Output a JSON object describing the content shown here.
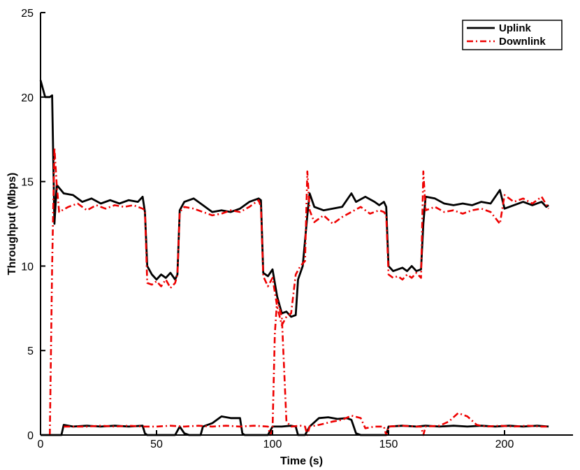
{
  "chart_data": {
    "type": "line",
    "title": "",
    "xlabel": "Time (s)",
    "ylabel": "Throughput (Mbps)",
    "xlim": [
      0,
      225
    ],
    "ylim": [
      0,
      25
    ],
    "xticks": [
      0,
      50,
      100,
      150,
      200
    ],
    "yticks": [
      0,
      5,
      10,
      15,
      20,
      25
    ],
    "grid": false,
    "legend_position": "top-right",
    "series": [
      {
        "name": "Uplink",
        "color": "#000000",
        "line_style": "solid",
        "traces": [
          [
            [
              0,
              21
            ],
            [
              2,
              20
            ],
            [
              4,
              20
            ],
            [
              5,
              20.1
            ],
            [
              6,
              12.5
            ],
            [
              7,
              14.8
            ],
            [
              10,
              14.3
            ],
            [
              14,
              14.2
            ],
            [
              18,
              13.8
            ],
            [
              22,
              14
            ],
            [
              26,
              13.7
            ],
            [
              30,
              13.9
            ],
            [
              34,
              13.7
            ],
            [
              38,
              13.9
            ],
            [
              42,
              13.8
            ],
            [
              44,
              14.1
            ],
            [
              45,
              13.2
            ],
            [
              46,
              10
            ],
            [
              48,
              9.5
            ],
            [
              50,
              9.2
            ],
            [
              52,
              9.5
            ],
            [
              54,
              9.3
            ],
            [
              56,
              9.6
            ],
            [
              58,
              9.2
            ],
            [
              59,
              9.5
            ],
            [
              60,
              13.3
            ],
            [
              62,
              13.8
            ],
            [
              66,
              14
            ],
            [
              70,
              13.6
            ],
            [
              74,
              13.2
            ],
            [
              78,
              13.3
            ],
            [
              82,
              13.2
            ],
            [
              86,
              13.4
            ],
            [
              90,
              13.8
            ],
            [
              94,
              14
            ],
            [
              95,
              13.9
            ],
            [
              96,
              9.6
            ],
            [
              98,
              9.4
            ],
            [
              100,
              9.8
            ],
            [
              102,
              8.2
            ],
            [
              104,
              7.2
            ],
            [
              106,
              7.3
            ],
            [
              108,
              7
            ],
            [
              110,
              7.1
            ],
            [
              111,
              9.2
            ],
            [
              113,
              10
            ],
            [
              115,
              13
            ],
            [
              116,
              14.3
            ],
            [
              118,
              13.5
            ],
            [
              122,
              13.3
            ],
            [
              126,
              13.4
            ],
            [
              130,
              13.5
            ],
            [
              134,
              14.3
            ],
            [
              136,
              13.8
            ],
            [
              140,
              14.1
            ],
            [
              144,
              13.8
            ],
            [
              146,
              13.6
            ],
            [
              148,
              13.8
            ],
            [
              149,
              13.5
            ],
            [
              150,
              10
            ],
            [
              152,
              9.7
            ],
            [
              154,
              9.8
            ],
            [
              156,
              9.9
            ],
            [
              158,
              9.7
            ],
            [
              160,
              10
            ],
            [
              162,
              9.7
            ],
            [
              164,
              9.8
            ],
            [
              165,
              12.5
            ],
            [
              166,
              14.1
            ],
            [
              170,
              14
            ],
            [
              174,
              13.7
            ],
            [
              178,
              13.6
            ],
            [
              182,
              13.7
            ],
            [
              186,
              13.6
            ],
            [
              190,
              13.8
            ],
            [
              194,
              13.7
            ],
            [
              198,
              14.5
            ],
            [
              200,
              13.4
            ],
            [
              204,
              13.6
            ],
            [
              208,
              13.8
            ],
            [
              212,
              13.6
            ],
            [
              216,
              13.8
            ],
            [
              218,
              13.5
            ],
            [
              219,
              13.6
            ]
          ],
          [
            [
              0,
              0
            ],
            [
              9,
              0
            ],
            [
              10,
              0.6
            ],
            [
              14,
              0.5
            ],
            [
              20,
              0.55
            ],
            [
              26,
              0.5
            ],
            [
              32,
              0.55
            ],
            [
              38,
              0.5
            ],
            [
              44,
              0.55
            ],
            [
              45,
              0.1
            ],
            [
              46,
              0
            ],
            [
              58,
              0
            ],
            [
              60,
              0.5
            ],
            [
              62,
              0.1
            ],
            [
              64,
              0
            ],
            [
              69,
              0
            ],
            [
              70,
              0.5
            ],
            [
              74,
              0.7
            ],
            [
              78,
              1.1
            ],
            [
              82,
              1
            ],
            [
              86,
              1
            ],
            [
              87,
              0.1
            ],
            [
              88,
              0
            ],
            [
              98,
              0
            ],
            [
              100,
              0.5
            ],
            [
              104,
              0.5
            ],
            [
              108,
              0.55
            ],
            [
              110,
              0.5
            ],
            [
              111,
              0
            ],
            [
              114,
              0
            ],
            [
              116,
              0.5
            ],
            [
              120,
              1
            ],
            [
              124,
              1.05
            ],
            [
              128,
              0.95
            ],
            [
              132,
              1
            ],
            [
              134,
              0.9
            ],
            [
              136,
              0.1
            ],
            [
              138,
              0
            ],
            [
              149,
              0
            ],
            [
              150,
              0.5
            ],
            [
              156,
              0.55
            ],
            [
              162,
              0.5
            ],
            [
              166,
              0.55
            ],
            [
              172,
              0.5
            ],
            [
              178,
              0.55
            ],
            [
              184,
              0.5
            ],
            [
              190,
              0.55
            ],
            [
              196,
              0.5
            ],
            [
              202,
              0.55
            ],
            [
              208,
              0.5
            ],
            [
              214,
              0.55
            ],
            [
              219,
              0.5
            ]
          ]
        ]
      },
      {
        "name": "Downlink",
        "color": "#ee0000",
        "line_style": "dash-dot",
        "traces": [
          [
            [
              4,
              0
            ],
            [
              5,
              10
            ],
            [
              6,
              17
            ],
            [
              7,
              14.8
            ],
            [
              8,
              13.2
            ],
            [
              12,
              13.5
            ],
            [
              16,
              13.7
            ],
            [
              20,
              13.3
            ],
            [
              24,
              13.6
            ],
            [
              28,
              13.4
            ],
            [
              32,
              13.6
            ],
            [
              36,
              13.5
            ],
            [
              40,
              13.6
            ],
            [
              44,
              13.4
            ],
            [
              45,
              13.3
            ],
            [
              46,
              9
            ],
            [
              48,
              8.9
            ],
            [
              50,
              9.1
            ],
            [
              52,
              8.8
            ],
            [
              54,
              9.2
            ],
            [
              56,
              8.7
            ],
            [
              58,
              9
            ],
            [
              59,
              9.5
            ],
            [
              60,
              13.2
            ],
            [
              62,
              13.5
            ],
            [
              66,
              13.4
            ],
            [
              70,
              13.2
            ],
            [
              74,
              13
            ],
            [
              78,
              13.1
            ],
            [
              82,
              13.3
            ],
            [
              86,
              13.2
            ],
            [
              90,
              13.5
            ],
            [
              94,
              13.9
            ],
            [
              95,
              13.5
            ],
            [
              96,
              9.4
            ],
            [
              98,
              8.8
            ],
            [
              100,
              9.3
            ],
            [
              102,
              7.6
            ],
            [
              104,
              6.5
            ],
            [
              106,
              7
            ],
            [
              108,
              7.2
            ],
            [
              110,
              9.5
            ],
            [
              112,
              10
            ],
            [
              114,
              10.3
            ],
            [
              115,
              15.6
            ],
            [
              116,
              13.3
            ],
            [
              118,
              12.6
            ],
            [
              122,
              13
            ],
            [
              126,
              12.5
            ],
            [
              130,
              12.9
            ],
            [
              134,
              13.2
            ],
            [
              138,
              13.5
            ],
            [
              142,
              13.1
            ],
            [
              146,
              13.3
            ],
            [
              148,
              13.2
            ],
            [
              149,
              13
            ],
            [
              150,
              9.5
            ],
            [
              152,
              9.3
            ],
            [
              154,
              9.4
            ],
            [
              156,
              9.2
            ],
            [
              158,
              9.5
            ],
            [
              160,
              9.3
            ],
            [
              162,
              9.6
            ],
            [
              164,
              9.3
            ],
            [
              165,
              15.6
            ],
            [
              166,
              13.3
            ],
            [
              170,
              13.5
            ],
            [
              174,
              13.2
            ],
            [
              178,
              13.3
            ],
            [
              182,
              13.1
            ],
            [
              186,
              13.3
            ],
            [
              190,
              13.4
            ],
            [
              194,
              13.2
            ],
            [
              198,
              12.5
            ],
            [
              200,
              14.2
            ],
            [
              204,
              13.8
            ],
            [
              208,
              14
            ],
            [
              212,
              13.7
            ],
            [
              216,
              14.1
            ],
            [
              219,
              13.4
            ]
          ],
          [
            [
              10,
              0.5
            ],
            [
              14,
              0.5
            ],
            [
              20,
              0.5
            ],
            [
              26,
              0.55
            ],
            [
              32,
              0.5
            ],
            [
              38,
              0.55
            ],
            [
              44,
              0.5
            ],
            [
              50,
              0.5
            ],
            [
              56,
              0.55
            ],
            [
              62,
              0.5
            ],
            [
              68,
              0.55
            ],
            [
              74,
              0.5
            ],
            [
              80,
              0.55
            ],
            [
              86,
              0.5
            ],
            [
              92,
              0.55
            ],
            [
              98,
              0.5
            ],
            [
              99,
              0
            ],
            [
              100,
              0.3
            ],
            [
              101,
              6
            ],
            [
              102,
              8
            ],
            [
              104,
              7
            ],
            [
              106,
              0.8
            ],
            [
              108,
              0.5
            ],
            [
              112,
              0.55
            ],
            [
              114,
              0.5
            ],
            [
              115,
              0
            ],
            [
              116,
              0.5
            ],
            [
              120,
              0.6
            ],
            [
              126,
              0.8
            ],
            [
              130,
              0.9
            ],
            [
              134,
              1.15
            ],
            [
              138,
              1
            ],
            [
              140,
              0.4
            ],
            [
              144,
              0.5
            ],
            [
              148,
              0.5
            ],
            [
              149,
              0
            ],
            [
              150,
              0.5
            ],
            [
              156,
              0.55
            ],
            [
              162,
              0.5
            ],
            [
              164,
              0.5
            ],
            [
              165,
              0
            ],
            [
              166,
              0.5
            ],
            [
              172,
              0.55
            ],
            [
              176,
              0.8
            ],
            [
              180,
              1.3
            ],
            [
              184,
              1.1
            ],
            [
              188,
              0.6
            ],
            [
              192,
              0.5
            ],
            [
              198,
              0.55
            ],
            [
              204,
              0.5
            ],
            [
              210,
              0.55
            ],
            [
              216,
              0.5
            ],
            [
              219,
              0.5
            ]
          ]
        ]
      }
    ]
  }
}
